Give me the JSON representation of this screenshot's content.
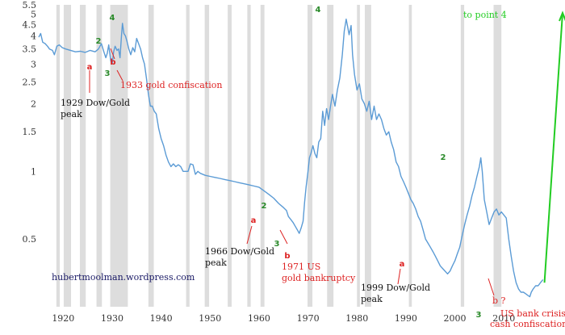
{
  "chart_data": {
    "type": "line",
    "title": "",
    "xlabel": "",
    "ylabel": "",
    "y_scale": "log",
    "xlim": [
      1915,
      2022
    ],
    "ylim": [
      0.25,
      5.5
    ],
    "x_ticks": [
      1920,
      1930,
      1940,
      1950,
      1960,
      1970,
      1980,
      1990,
      2000,
      2010
    ],
    "x_tick_labels": [
      "1920",
      "1930",
      "1940",
      "1950",
      "1960",
      "1970",
      "1980",
      "1990",
      "2000",
      "2010"
    ],
    "y_ticks": [
      0.5,
      1,
      1.5,
      2,
      2.5,
      3,
      3.5,
      4,
      4.5,
      5,
      5.5
    ],
    "y_tick_labels": [
      "0.5",
      "1",
      "1.5",
      "2",
      "2.5",
      "3",
      "3.5",
      "4",
      "4.5",
      "5",
      "5.5"
    ],
    "grid": false,
    "recession_bands": [
      [
        1918.6,
        1919.3
      ],
      [
        1920.1,
        1921.6
      ],
      [
        1923.4,
        1924.6
      ],
      [
        1926.8,
        1927.9
      ],
      [
        1929.6,
        1933.2
      ],
      [
        1937.4,
        1938.5
      ],
      [
        1945.1,
        1945.8
      ],
      [
        1948.9,
        1949.8
      ],
      [
        1953.6,
        1954.4
      ],
      [
        1957.6,
        1958.3
      ],
      [
        1960.3,
        1961.1
      ],
      [
        1969.9,
        1970.9
      ],
      [
        1973.9,
        1975.2
      ],
      [
        1980.0,
        1980.6
      ],
      [
        1981.6,
        1982.9
      ],
      [
        1990.6,
        1991.2
      ],
      [
        2001.2,
        2001.9
      ],
      [
        2007.9,
        2009.5
      ]
    ],
    "series": [
      {
        "color": "#5b9bd5",
        "points": [
          [
            1915.0,
            3.95
          ],
          [
            1915.4,
            4.1
          ],
          [
            1915.8,
            3.75
          ],
          [
            1916.3,
            3.7
          ],
          [
            1916.8,
            3.6
          ],
          [
            1917.2,
            3.5
          ],
          [
            1917.8,
            3.45
          ],
          [
            1918.2,
            3.3
          ],
          [
            1918.7,
            3.6
          ],
          [
            1919.2,
            3.65
          ],
          [
            1919.8,
            3.55
          ],
          [
            1920.5,
            3.5
          ],
          [
            1921.5,
            3.45
          ],
          [
            1922.5,
            3.4
          ],
          [
            1923.5,
            3.42
          ],
          [
            1924.5,
            3.38
          ],
          [
            1925.5,
            3.45
          ],
          [
            1926.5,
            3.4
          ],
          [
            1927.2,
            3.5
          ],
          [
            1927.8,
            3.7
          ],
          [
            1928.3,
            3.4
          ],
          [
            1928.7,
            3.2
          ],
          [
            1929.0,
            3.35
          ],
          [
            1929.3,
            3.65
          ],
          [
            1929.7,
            3.1
          ],
          [
            1930.0,
            3.0
          ],
          [
            1930.3,
            3.4
          ],
          [
            1930.6,
            3.6
          ],
          [
            1931.0,
            3.45
          ],
          [
            1931.3,
            3.5
          ],
          [
            1931.6,
            3.2
          ],
          [
            1931.9,
            4.0
          ],
          [
            1932.1,
            4.55
          ],
          [
            1932.4,
            4.1
          ],
          [
            1932.7,
            4.0
          ],
          [
            1933.0,
            3.8
          ],
          [
            1933.4,
            3.5
          ],
          [
            1933.8,
            3.3
          ],
          [
            1934.2,
            3.55
          ],
          [
            1934.6,
            3.4
          ],
          [
            1935.0,
            3.9
          ],
          [
            1935.4,
            3.7
          ],
          [
            1935.8,
            3.5
          ],
          [
            1936.2,
            3.2
          ],
          [
            1936.6,
            3.0
          ],
          [
            1937.0,
            2.6
          ],
          [
            1937.4,
            2.2
          ],
          [
            1937.8,
            1.95
          ],
          [
            1938.2,
            1.95
          ],
          [
            1938.6,
            1.85
          ],
          [
            1939.0,
            1.8
          ],
          [
            1939.5,
            1.55
          ],
          [
            1940.0,
            1.4
          ],
          [
            1940.5,
            1.3
          ],
          [
            1941.0,
            1.18
          ],
          [
            1941.5,
            1.1
          ],
          [
            1942.0,
            1.05
          ],
          [
            1942.5,
            1.08
          ],
          [
            1943.0,
            1.05
          ],
          [
            1943.5,
            1.07
          ],
          [
            1944.0,
            1.05
          ],
          [
            1944.5,
            1.0
          ],
          [
            1945.0,
            1.0
          ],
          [
            1945.5,
            1.0
          ],
          [
            1946.0,
            1.08
          ],
          [
            1946.5,
            1.07
          ],
          [
            1947.0,
            0.97
          ],
          [
            1947.5,
            1.0
          ],
          [
            1948.0,
            0.98
          ],
          [
            1949.0,
            0.96
          ],
          [
            1950.0,
            0.95
          ],
          [
            1951.0,
            0.94
          ],
          [
            1952.0,
            0.93
          ],
          [
            1953.0,
            0.92
          ],
          [
            1954.0,
            0.91
          ],
          [
            1955.0,
            0.9
          ],
          [
            1956.0,
            0.89
          ],
          [
            1957.0,
            0.88
          ],
          [
            1958.0,
            0.87
          ],
          [
            1959.0,
            0.86
          ],
          [
            1960.0,
            0.85
          ],
          [
            1961.0,
            0.82
          ],
          [
            1962.0,
            0.79
          ],
          [
            1963.0,
            0.76
          ],
          [
            1964.0,
            0.72
          ],
          [
            1965.0,
            0.69
          ],
          [
            1965.6,
            0.67
          ],
          [
            1966.0,
            0.63
          ],
          [
            1966.5,
            0.61
          ],
          [
            1967.0,
            0.59
          ],
          [
            1967.4,
            0.57
          ],
          [
            1967.8,
            0.55
          ],
          [
            1968.2,
            0.53
          ],
          [
            1968.6,
            0.56
          ],
          [
            1969.0,
            0.6
          ],
          [
            1969.3,
            0.73
          ],
          [
            1969.6,
            0.85
          ],
          [
            1970.0,
            1.0
          ],
          [
            1970.3,
            1.15
          ],
          [
            1970.6,
            1.2
          ],
          [
            1971.0,
            1.3
          ],
          [
            1971.4,
            1.2
          ],
          [
            1971.8,
            1.15
          ],
          [
            1972.2,
            1.35
          ],
          [
            1972.6,
            1.4
          ],
          [
            1973.0,
            1.85
          ],
          [
            1973.4,
            1.6
          ],
          [
            1973.8,
            1.9
          ],
          [
            1974.2,
            1.7
          ],
          [
            1974.6,
            1.95
          ],
          [
            1975.0,
            2.2
          ],
          [
            1975.5,
            1.95
          ],
          [
            1976.0,
            2.3
          ],
          [
            1976.5,
            2.6
          ],
          [
            1977.0,
            3.3
          ],
          [
            1977.4,
            4.2
          ],
          [
            1977.8,
            4.75
          ],
          [
            1978.1,
            4.4
          ],
          [
            1978.4,
            4.05
          ],
          [
            1978.8,
            4.45
          ],
          [
            1979.1,
            3.3
          ],
          [
            1979.5,
            2.7
          ],
          [
            1980.0,
            2.3
          ],
          [
            1980.5,
            2.45
          ],
          [
            1981.0,
            2.1
          ],
          [
            1981.5,
            2.0
          ],
          [
            1982.0,
            1.85
          ],
          [
            1982.5,
            2.05
          ],
          [
            1983.0,
            1.7
          ],
          [
            1983.5,
            1.95
          ],
          [
            1984.0,
            1.7
          ],
          [
            1984.5,
            1.8
          ],
          [
            1985.0,
            1.7
          ],
          [
            1985.5,
            1.55
          ],
          [
            1986.0,
            1.45
          ],
          [
            1986.5,
            1.5
          ],
          [
            1987.0,
            1.35
          ],
          [
            1987.5,
            1.25
          ],
          [
            1988.0,
            1.1
          ],
          [
            1988.5,
            1.05
          ],
          [
            1989.0,
            0.95
          ],
          [
            1989.5,
            0.9
          ],
          [
            1990.0,
            0.85
          ],
          [
            1990.5,
            0.8
          ],
          [
            1991.0,
            0.75
          ],
          [
            1991.5,
            0.72
          ],
          [
            1992.0,
            0.68
          ],
          [
            1992.5,
            0.63
          ],
          [
            1993.0,
            0.6
          ],
          [
            1993.5,
            0.55
          ],
          [
            1994.0,
            0.5
          ],
          [
            1994.5,
            0.48
          ],
          [
            1995.0,
            0.46
          ],
          [
            1995.5,
            0.44
          ],
          [
            1996.0,
            0.42
          ],
          [
            1996.5,
            0.4
          ],
          [
            1997.0,
            0.38
          ],
          [
            1997.5,
            0.37
          ],
          [
            1998.0,
            0.36
          ],
          [
            1998.5,
            0.35
          ],
          [
            1999.0,
            0.36
          ],
          [
            1999.5,
            0.38
          ],
          [
            2000.0,
            0.4
          ],
          [
            2000.5,
            0.43
          ],
          [
            2001.0,
            0.46
          ],
          [
            2001.5,
            0.52
          ],
          [
            2002.0,
            0.58
          ],
          [
            2002.5,
            0.64
          ],
          [
            2003.0,
            0.7
          ],
          [
            2003.5,
            0.78
          ],
          [
            2004.0,
            0.85
          ],
          [
            2004.5,
            0.95
          ],
          [
            2005.0,
            1.05
          ],
          [
            2005.3,
            1.15
          ],
          [
            2005.6,
            1.0
          ],
          [
            2006.0,
            0.75
          ],
          [
            2006.5,
            0.66
          ],
          [
            2007.0,
            0.58
          ],
          [
            2007.5,
            0.62
          ],
          [
            2008.0,
            0.66
          ],
          [
            2008.5,
            0.68
          ],
          [
            2009.0,
            0.64
          ],
          [
            2009.5,
            0.66
          ],
          [
            2010.0,
            0.64
          ],
          [
            2010.5,
            0.62
          ],
          [
            2011.0,
            0.5
          ],
          [
            2011.5,
            0.42
          ],
          [
            2012.0,
            0.36
          ],
          [
            2012.5,
            0.32
          ],
          [
            2013.0,
            0.3
          ],
          [
            2013.5,
            0.29
          ],
          [
            2014.0,
            0.29
          ],
          [
            2014.5,
            0.285
          ],
          [
            2015.0,
            0.28
          ],
          [
            2015.3,
            0.277
          ],
          [
            2015.6,
            0.29
          ],
          [
            2016.0,
            0.3
          ],
          [
            2016.5,
            0.31
          ],
          [
            2017.0,
            0.31
          ],
          [
            2017.5,
            0.32
          ],
          [
            2018.0,
            0.33
          ]
        ]
      }
    ],
    "projection": {
      "color": "#22cc22",
      "points": [
        [
          2018.3,
          0.32
        ],
        [
          2022.0,
          5.5
        ]
      ],
      "label": "to point 4"
    },
    "annotations": [
      {
        "text": "1929 Dow/Gold",
        "color": "#111111"
      },
      {
        "text": "peak",
        "color": "#111111"
      },
      {
        "text": "1933 gold confiscation",
        "color": "#dd2222"
      },
      {
        "text": "1966 Dow/Gold",
        "color": "#111111"
      },
      {
        "text": "peak",
        "color": "#111111"
      },
      {
        "text": "1971 US",
        "color": "#dd2222"
      },
      {
        "text": "gold bankruptcy",
        "color": "#dd2222"
      },
      {
        "text": "1999 Dow/Gold",
        "color": "#111111"
      },
      {
        "text": "peak",
        "color": "#111111"
      },
      {
        "text": "b ?",
        "color": "#dd2222"
      },
      {
        "text": "US bank crisis/",
        "color": "#dd2222"
      },
      {
        "text": "cash confiscation?",
        "color": "#dd2222"
      },
      {
        "text": "hubertmoolman.wordpress.com",
        "color": "#1a1a66"
      }
    ],
    "wave_labels": [
      {
        "text": "2",
        "color": "#2a8a2a"
      },
      {
        "text": "4",
        "color": "#2a8a2a"
      },
      {
        "text": "a",
        "color": "#dd2222"
      },
      {
        "text": "b",
        "color": "#dd2222"
      },
      {
        "text": "3",
        "color": "#2a8a2a"
      },
      {
        "text": "2",
        "color": "#2a8a2a"
      },
      {
        "text": "a",
        "color": "#dd2222"
      },
      {
        "text": "3",
        "color": "#2a8a2a"
      },
      {
        "text": "b",
        "color": "#dd2222"
      },
      {
        "text": "4",
        "color": "#2a8a2a"
      },
      {
        "text": "2",
        "color": "#2a8a2a"
      },
      {
        "text": "a",
        "color": "#dd2222"
      },
      {
        "text": "3",
        "color": "#2a8a2a"
      }
    ]
  }
}
